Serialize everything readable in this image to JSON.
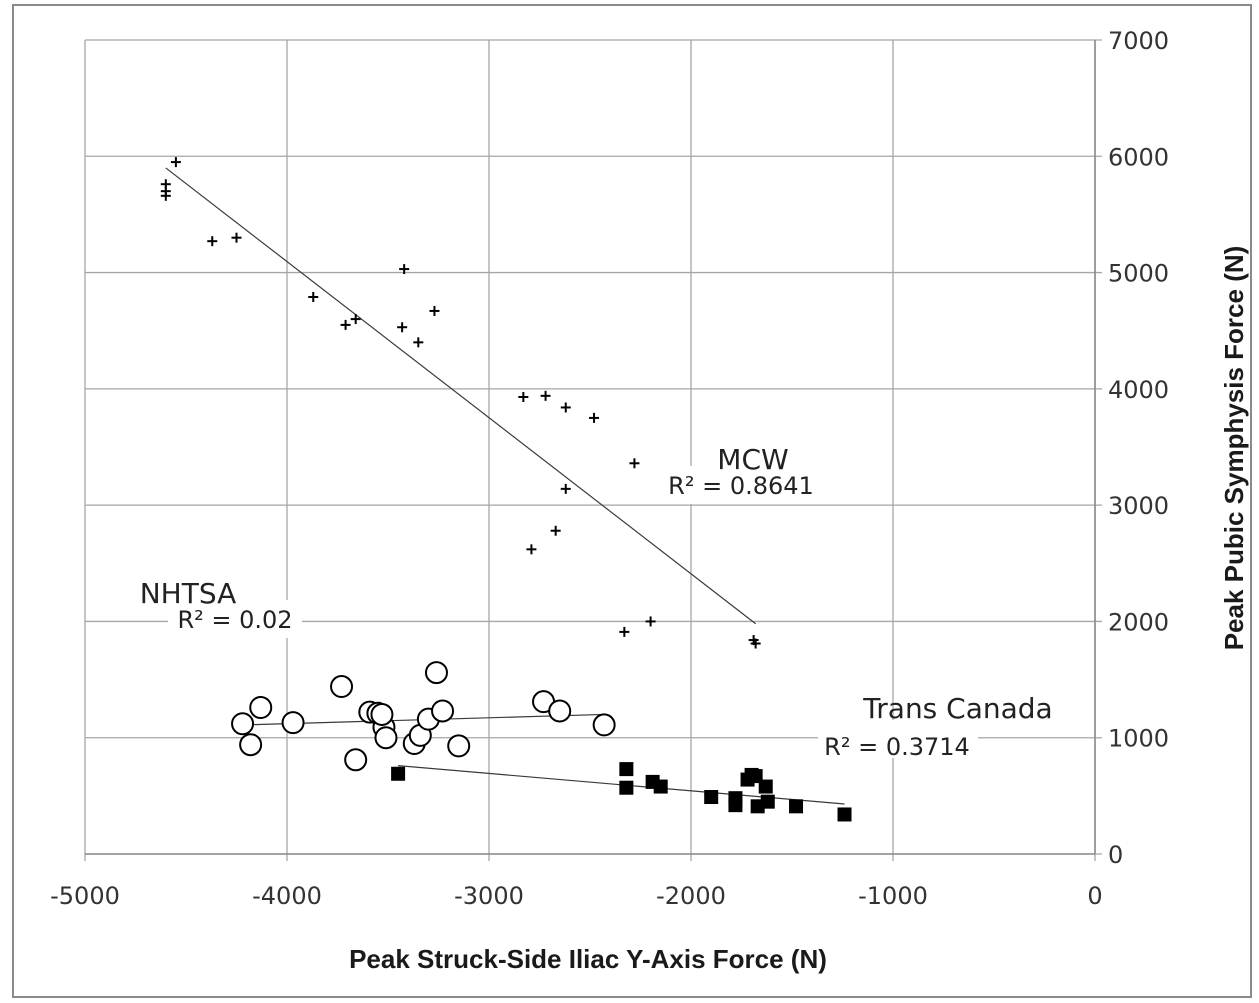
{
  "chart_data": {
    "type": "scatter",
    "title": "",
    "xlabel": "Peak Struck-Side Iliac Y-Axis Force (N)",
    "ylabel": "Peak Pubic Symphysis Force (N)",
    "xlim": [
      -5000,
      0
    ],
    "ylim": [
      0,
      7000
    ],
    "x_ticks": [
      "-5000",
      "-4000",
      "-3000",
      "-2000",
      "-1000",
      "0"
    ],
    "y_ticks": [
      "0",
      "1000",
      "2000",
      "3000",
      "4000",
      "5000",
      "6000",
      "7000"
    ],
    "grid": true,
    "legend": "none",
    "series": [
      {
        "name": "MCW",
        "r2_label": "R² = 0.8641",
        "marker": "plus",
        "trendline": [
          [
            -4600,
            5900
          ],
          [
            -1680,
            1980
          ]
        ],
        "points": [
          [
            -4550,
            5950
          ],
          [
            -4600,
            5760
          ],
          [
            -4600,
            5700
          ],
          [
            -4600,
            5660
          ],
          [
            -4370,
            5270
          ],
          [
            -4250,
            5300
          ],
          [
            -3870,
            4790
          ],
          [
            -3420,
            5030
          ],
          [
            -3710,
            4550
          ],
          [
            -3660,
            4600
          ],
          [
            -3430,
            4530
          ],
          [
            -3350,
            4400
          ],
          [
            -3270,
            4670
          ],
          [
            -2830,
            3930
          ],
          [
            -2720,
            3940
          ],
          [
            -2620,
            3840
          ],
          [
            -2480,
            3750
          ],
          [
            -2280,
            3360
          ],
          [
            -2620,
            3140
          ],
          [
            -2670,
            2780
          ],
          [
            -2790,
            2620
          ],
          [
            -2330,
            1910
          ],
          [
            -2200,
            2000
          ],
          [
            -1690,
            1840
          ],
          [
            -1680,
            1810
          ]
        ]
      },
      {
        "name": "NHTSA",
        "r2_label": "R² = 0.02",
        "marker": "circle-open",
        "trendline": [
          [
            -4220,
            1110
          ],
          [
            -2430,
            1200
          ]
        ],
        "points": [
          [
            -4220,
            1120
          ],
          [
            -4130,
            1260
          ],
          [
            -4180,
            940
          ],
          [
            -3970,
            1130
          ],
          [
            -3730,
            1440
          ],
          [
            -3660,
            810
          ],
          [
            -3590,
            1220
          ],
          [
            -3550,
            1210
          ],
          [
            -3520,
            1090
          ],
          [
            -3530,
            1200
          ],
          [
            -3510,
            1000
          ],
          [
            -3370,
            950
          ],
          [
            -3340,
            1020
          ],
          [
            -3300,
            1160
          ],
          [
            -3260,
            1560
          ],
          [
            -3230,
            1230
          ],
          [
            -3150,
            930
          ],
          [
            -2730,
            1310
          ],
          [
            -2650,
            1230
          ],
          [
            -2430,
            1110
          ]
        ]
      },
      {
        "name": "Trans Canada",
        "r2_label": "R² = 0.3714",
        "marker": "square-filled",
        "trendline": [
          [
            -3450,
            760
          ],
          [
            -1240,
            430
          ]
        ],
        "points": [
          [
            -3450,
            690
          ],
          [
            -2320,
            730
          ],
          [
            -2320,
            570
          ],
          [
            -2190,
            620
          ],
          [
            -2150,
            580
          ],
          [
            -1900,
            490
          ],
          [
            -1780,
            480
          ],
          [
            -1780,
            420
          ],
          [
            -1720,
            640
          ],
          [
            -1700,
            680
          ],
          [
            -1680,
            670
          ],
          [
            -1670,
            410
          ],
          [
            -1630,
            580
          ],
          [
            -1620,
            450
          ],
          [
            -1480,
            410
          ],
          [
            -1240,
            340
          ]
        ]
      }
    ],
    "colors": {
      "grid": "#a6a6a6",
      "axis": "#8c8c8c",
      "marker": "#000000",
      "trendline": "#3a3a3a"
    }
  }
}
